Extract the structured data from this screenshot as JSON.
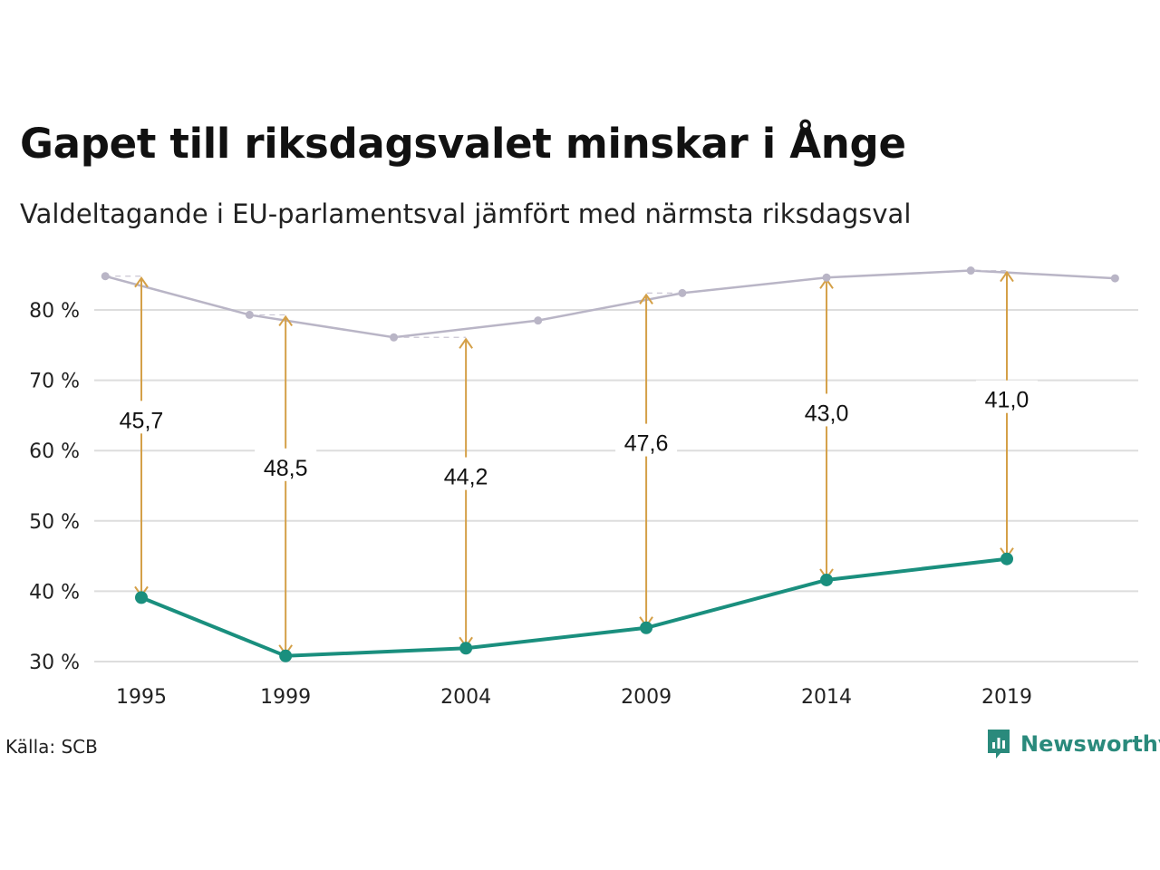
{
  "header": {
    "title": "Gapet till riksdagsvalet minskar i Ånge",
    "subtitle": "Valdeltagande i EU-parlamentsval jämfört med närmsta riksdagsval"
  },
  "footer": {
    "source": "Källa: SCB",
    "brand": "Newsworthy"
  },
  "colors": {
    "eu_line": "#1a8f7e",
    "riksdag_line": "#b9b5c6",
    "arrow": "#d4a048",
    "grid": "#dddddd"
  },
  "icons": [
    "newsworthy-logo-icon"
  ],
  "chart_data": {
    "type": "line",
    "y_ticks": [
      "30 %",
      "40 %",
      "50 %",
      "60 %",
      "70 %",
      "80 %"
    ],
    "ylim": [
      30,
      80
    ],
    "x_ticks": [
      "1995",
      "1999",
      "2004",
      "2009",
      "2014",
      "2019"
    ],
    "grid": true,
    "series": [
      {
        "key": "riksdag",
        "x": [
          1994,
          1998,
          2002,
          2006,
          2010,
          2014,
          2018,
          2022
        ],
        "values": [
          84.8,
          79.3,
          76.1,
          78.5,
          82.4,
          84.6,
          85.6,
          84.5
        ]
      },
      {
        "key": "eu",
        "x": [
          1995,
          1999,
          2004,
          2009,
          2014,
          2019
        ],
        "values": [
          39.1,
          30.8,
          31.9,
          34.8,
          41.6,
          44.6
        ]
      }
    ],
    "gaps": [
      {
        "x": 1995,
        "label": "45,7",
        "top": 84.8,
        "bottom": 39.1
      },
      {
        "x": 1999,
        "label": "48,5",
        "top": 79.3,
        "bottom": 30.8
      },
      {
        "x": 2004,
        "label": "44,2",
        "top": 76.1,
        "bottom": 31.9
      },
      {
        "x": 2009,
        "label": "47,6",
        "top": 82.4,
        "bottom": 34.8
      },
      {
        "x": 2014,
        "label": "43,0",
        "top": 84.6,
        "bottom": 41.6
      },
      {
        "x": 2019,
        "label": "41,0",
        "top": 85.6,
        "bottom": 44.6
      }
    ]
  }
}
